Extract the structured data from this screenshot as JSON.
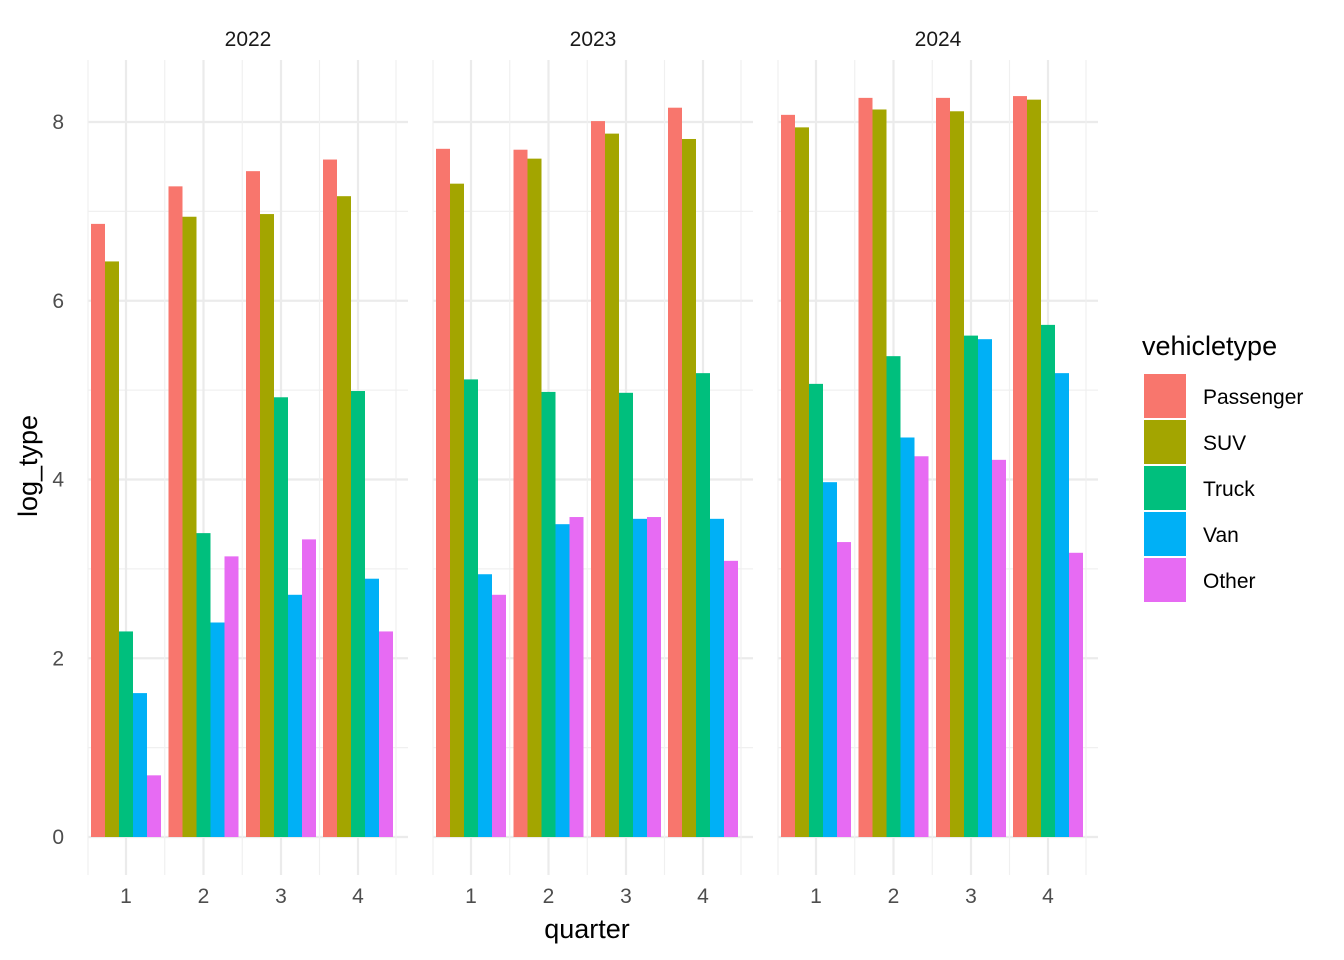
{
  "chart_data": {
    "type": "bar",
    "layout": "faceted grouped bar",
    "xlabel": "quarter",
    "ylabel": "log_type",
    "ylim": [
      0,
      8.6
    ],
    "yticks": [
      0,
      2,
      4,
      6,
      8
    ],
    "grid": true,
    "legend": {
      "title": "vehicletype",
      "position": "right"
    },
    "categories": [
      "1",
      "2",
      "3",
      "4"
    ],
    "series_order": [
      "Passenger",
      "SUV",
      "Truck",
      "Van",
      "Other"
    ],
    "colors": {
      "Passenger": "#F8766D",
      "SUV": "#A3A500",
      "Truck": "#00BF7D",
      "Van": "#00B0F6",
      "Other": "#E76BF3"
    },
    "facets": [
      {
        "label": "2022",
        "series": [
          {
            "name": "Passenger",
            "values": [
              6.86,
              7.28,
              7.45,
              7.58
            ]
          },
          {
            "name": "SUV",
            "values": [
              6.44,
              6.94,
              6.97,
              7.17
            ]
          },
          {
            "name": "Truck",
            "values": [
              2.3,
              3.4,
              4.92,
              4.99
            ]
          },
          {
            "name": "Van",
            "values": [
              1.61,
              2.4,
              2.71,
              2.89
            ]
          },
          {
            "name": "Other",
            "values": [
              0.69,
              3.14,
              3.33,
              2.3
            ]
          }
        ]
      },
      {
        "label": "2023",
        "series": [
          {
            "name": "Passenger",
            "values": [
              7.7,
              7.69,
              8.01,
              8.16
            ]
          },
          {
            "name": "SUV",
            "values": [
              7.31,
              7.59,
              7.87,
              7.81
            ]
          },
          {
            "name": "Truck",
            "values": [
              5.12,
              4.98,
              4.97,
              5.19
            ]
          },
          {
            "name": "Van",
            "values": [
              2.94,
              3.5,
              3.56,
              3.56
            ]
          },
          {
            "name": "Other",
            "values": [
              2.71,
              3.58,
              3.58,
              3.09
            ]
          }
        ]
      },
      {
        "label": "2024",
        "series": [
          {
            "name": "Passenger",
            "values": [
              8.08,
              8.27,
              8.27,
              8.29
            ]
          },
          {
            "name": "SUV",
            "values": [
              7.94,
              8.14,
              8.12,
              8.25
            ]
          },
          {
            "name": "Truck",
            "values": [
              5.07,
              5.38,
              5.61,
              5.73
            ]
          },
          {
            "name": "Van",
            "values": [
              3.97,
              4.47,
              5.57,
              5.19
            ]
          },
          {
            "name": "Other",
            "values": [
              3.3,
              4.26,
              4.22,
              3.18
            ]
          }
        ]
      }
    ]
  }
}
